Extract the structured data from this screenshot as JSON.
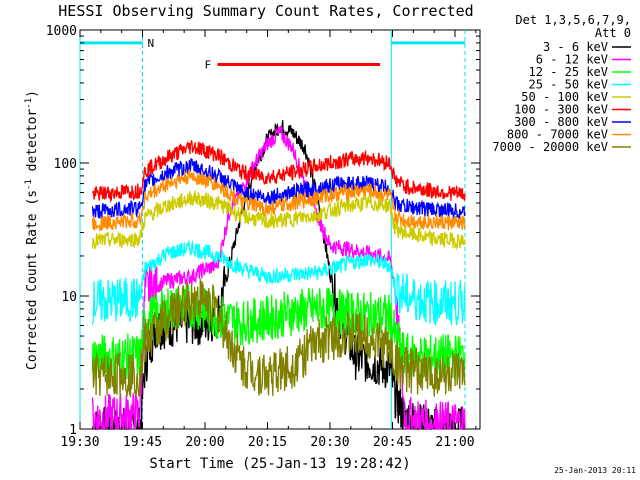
{
  "chart_data": {
    "type": "line",
    "title": "HESSI Observing Summary Count Rates, Corrected",
    "xlabel": "Start Time (25-Jan-13 19:28:42)",
    "ylabel_parts": [
      "Corrected Count Rate (s",
      "-1",
      " detector",
      "-1",
      ")"
    ],
    "yscale": "log",
    "xlim": [
      19.5,
      21.1
    ],
    "ylim": [
      1,
      1000
    ],
    "x_ticks": [
      {
        "x": 19.5,
        "label": "19:30"
      },
      {
        "x": 19.75,
        "label": "19:45"
      },
      {
        "x": 20.0,
        "label": "20:00"
      },
      {
        "x": 20.25,
        "label": "20:15"
      },
      {
        "x": 20.5,
        "label": "20:30"
      },
      {
        "x": 20.75,
        "label": "20:45"
      },
      {
        "x": 21.0,
        "label": "21:00"
      }
    ],
    "y_ticks": [
      {
        "y": 1,
        "label": "1"
      },
      {
        "y": 10,
        "label": "10"
      },
      {
        "y": 100,
        "label": "100"
      },
      {
        "y": 1000,
        "label": "1000"
      }
    ],
    "legend": {
      "header": [
        "Det 1,3,5,6,7,9,",
        "Att 0"
      ],
      "placement": "right"
    },
    "series": [
      {
        "name": "3 - 6 keV",
        "color": "#000000",
        "points": [
          [
            19.55,
            1.0
          ],
          [
            19.74,
            1.0
          ],
          [
            19.76,
            3.0
          ],
          [
            19.8,
            5.8
          ],
          [
            19.9,
            6.2
          ],
          [
            20.0,
            6.3
          ],
          [
            20.05,
            7.0
          ],
          [
            20.1,
            18
          ],
          [
            20.15,
            45
          ],
          [
            20.2,
            95
          ],
          [
            20.25,
            150
          ],
          [
            20.3,
            190
          ],
          [
            20.35,
            170
          ],
          [
            20.4,
            130
          ],
          [
            20.45,
            55
          ],
          [
            20.5,
            15
          ],
          [
            20.55,
            6
          ],
          [
            20.6,
            3.5
          ],
          [
            20.7,
            3.0
          ],
          [
            20.74,
            2.8
          ],
          [
            20.76,
            1.8
          ],
          [
            20.8,
            1.2
          ],
          [
            20.9,
            1.0
          ],
          [
            21.04,
            1.0
          ]
        ]
      },
      {
        "name": "6 - 12 keV",
        "color": "#ff00ff",
        "points": [
          [
            19.55,
            1.2
          ],
          [
            19.74,
            1.3
          ],
          [
            19.76,
            11
          ],
          [
            19.85,
            13
          ],
          [
            19.95,
            14
          ],
          [
            20.0,
            16
          ],
          [
            20.05,
            17
          ],
          [
            20.1,
            45
          ],
          [
            20.15,
            65
          ],
          [
            20.2,
            100
          ],
          [
            20.25,
            140
          ],
          [
            20.3,
            170
          ],
          [
            20.35,
            130
          ],
          [
            20.4,
            70
          ],
          [
            20.45,
            40
          ],
          [
            20.5,
            24
          ],
          [
            20.55,
            23
          ],
          [
            20.6,
            22
          ],
          [
            20.7,
            20
          ],
          [
            20.74,
            19
          ],
          [
            20.76,
            12
          ],
          [
            20.8,
            1.2
          ],
          [
            20.9,
            1.1
          ],
          [
            21.04,
            1.1
          ]
        ]
      },
      {
        "name": "12 - 25 keV",
        "color": "#00ff00",
        "points": [
          [
            19.55,
            3.5
          ],
          [
            19.74,
            3.5
          ],
          [
            19.76,
            6.5
          ],
          [
            19.85,
            8
          ],
          [
            19.95,
            8.5
          ],
          [
            20.05,
            7
          ],
          [
            20.15,
            6.3
          ],
          [
            20.25,
            6.8
          ],
          [
            20.35,
            7.5
          ],
          [
            20.45,
            8
          ],
          [
            20.55,
            7.5
          ],
          [
            20.65,
            7.2
          ],
          [
            20.74,
            7
          ],
          [
            20.76,
            5
          ],
          [
            20.8,
            3.5
          ],
          [
            20.9,
            3.5
          ],
          [
            21.04,
            3.5
          ]
        ]
      },
      {
        "name": "25 - 50 keV",
        "color": "#00ffff",
        "points": [
          [
            19.55,
            9
          ],
          [
            19.74,
            9.5
          ],
          [
            19.76,
            16
          ],
          [
            19.85,
            21
          ],
          [
            19.95,
            23
          ],
          [
            20.05,
            20
          ],
          [
            20.15,
            16
          ],
          [
            20.25,
            14
          ],
          [
            20.35,
            14.5
          ],
          [
            20.45,
            15
          ],
          [
            20.55,
            17
          ],
          [
            20.65,
            19
          ],
          [
            20.74,
            17
          ],
          [
            20.76,
            12
          ],
          [
            20.8,
            10
          ],
          [
            20.9,
            9
          ],
          [
            21.04,
            8.8
          ]
        ]
      },
      {
        "name": "50 - 100 keV",
        "color": "#cccc00",
        "points": [
          [
            19.55,
            26
          ],
          [
            19.74,
            27
          ],
          [
            19.76,
            39
          ],
          [
            19.85,
            48
          ],
          [
            19.95,
            55
          ],
          [
            20.05,
            50
          ],
          [
            20.15,
            40
          ],
          [
            20.25,
            36
          ],
          [
            20.35,
            38
          ],
          [
            20.45,
            41
          ],
          [
            20.55,
            47
          ],
          [
            20.65,
            50
          ],
          [
            20.74,
            48
          ],
          [
            20.76,
            32
          ],
          [
            20.8,
            30
          ],
          [
            20.9,
            27
          ],
          [
            21.04,
            26
          ]
        ]
      },
      {
        "name": "100 - 300 keV",
        "color": "#ff0000",
        "points": [
          [
            19.55,
            58
          ],
          [
            19.74,
            62
          ],
          [
            19.76,
            87
          ],
          [
            19.85,
            110
          ],
          [
            19.95,
            135
          ],
          [
            20.05,
            115
          ],
          [
            20.15,
            85
          ],
          [
            20.25,
            78
          ],
          [
            20.35,
            85
          ],
          [
            20.45,
            95
          ],
          [
            20.55,
            105
          ],
          [
            20.65,
            110
          ],
          [
            20.74,
            100
          ],
          [
            20.76,
            75
          ],
          [
            20.8,
            67
          ],
          [
            20.9,
            62
          ],
          [
            21.04,
            58
          ]
        ]
      },
      {
        "name": "300 - 800 keV",
        "color": "#0000ff",
        "points": [
          [
            19.55,
            43
          ],
          [
            19.74,
            46
          ],
          [
            19.76,
            68
          ],
          [
            19.85,
            85
          ],
          [
            19.95,
            95
          ],
          [
            20.05,
            80
          ],
          [
            20.15,
            60
          ],
          [
            20.25,
            55
          ],
          [
            20.35,
            60
          ],
          [
            20.45,
            65
          ],
          [
            20.55,
            70
          ],
          [
            20.65,
            70
          ],
          [
            20.74,
            65
          ],
          [
            20.76,
            50
          ],
          [
            20.8,
            47
          ],
          [
            20.9,
            45
          ],
          [
            21.04,
            43
          ]
        ]
      },
      {
        "name": "800 - 7000 keV",
        "color": "#ff8c00",
        "points": [
          [
            19.55,
            35
          ],
          [
            19.74,
            37
          ],
          [
            19.76,
            55
          ],
          [
            19.85,
            70
          ],
          [
            19.95,
            80
          ],
          [
            20.05,
            68
          ],
          [
            20.15,
            50
          ],
          [
            20.25,
            45
          ],
          [
            20.35,
            50
          ],
          [
            20.45,
            55
          ],
          [
            20.55,
            60
          ],
          [
            20.65,
            62
          ],
          [
            20.74,
            56
          ],
          [
            20.76,
            40
          ],
          [
            20.8,
            37
          ],
          [
            20.9,
            36
          ],
          [
            21.04,
            35
          ]
        ]
      },
      {
        "name": "7000 - 20000 keV",
        "color": "#808000",
        "points": [
          [
            19.55,
            2.5
          ],
          [
            19.74,
            2.6
          ],
          [
            19.76,
            4.5
          ],
          [
            19.85,
            7
          ],
          [
            19.95,
            9.5
          ],
          [
            20.0,
            9.5
          ],
          [
            20.05,
            7.5
          ],
          [
            20.1,
            4.5
          ],
          [
            20.15,
            3.0
          ],
          [
            20.25,
            2.5
          ],
          [
            20.35,
            3.0
          ],
          [
            20.45,
            4.5
          ],
          [
            20.55,
            5.2
          ],
          [
            20.65,
            5.0
          ],
          [
            20.74,
            4.0
          ],
          [
            20.76,
            3.2
          ],
          [
            20.8,
            2.8
          ],
          [
            20.9,
            2.6
          ],
          [
            21.04,
            2.5
          ]
        ]
      }
    ],
    "annotations": [
      {
        "type": "segment",
        "label": "",
        "color": "#00e5ee",
        "x1": 19.5,
        "x2": 19.75,
        "y": 800
      },
      {
        "type": "segment",
        "label": "N",
        "color": "#00e5ee",
        "x1": 19.75,
        "x2": 19.75,
        "y": 800
      },
      {
        "type": "segment",
        "label": "",
        "color": "#00e5ee",
        "x1": 20.745,
        "x2": 21.04,
        "y": 800
      },
      {
        "type": "segment",
        "label": "F",
        "color": "#ff0000",
        "x1": 20.05,
        "x2": 20.7,
        "y": 550
      },
      {
        "type": "vline",
        "color": "#00e5ee",
        "x": 19.5,
        "style": "solid"
      },
      {
        "type": "vline",
        "color": "#00e5ee",
        "x": 19.75,
        "style": "dashed"
      },
      {
        "type": "vline",
        "color": "#00e5ee",
        "x": 20.745,
        "style": "solid"
      },
      {
        "type": "vline",
        "color": "#00e5ee",
        "x": 21.04,
        "style": "dashed"
      }
    ]
  },
  "footer": {
    "timestamp": "25-Jan-2013 20:11"
  }
}
